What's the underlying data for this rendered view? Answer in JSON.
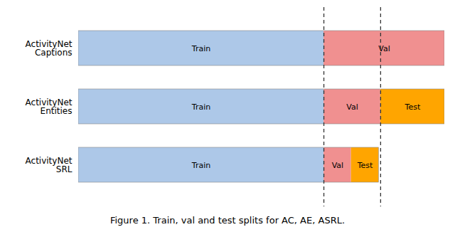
{
  "chart_data": {
    "type": "bar",
    "orientation": "horizontal",
    "stacked": true,
    "categories": [
      "ActivityNet\nCaptions",
      "ActivityNet\nEntities",
      "ActivityNet\nSRL"
    ],
    "series": [
      {
        "name": "Train",
        "color": "#adc8e8",
        "values": [
          0.67,
          0.67,
          0.67
        ]
      },
      {
        "name": "Val",
        "color": "#f09090",
        "values": [
          0.33,
          0.155,
          0.075
        ]
      },
      {
        "name": "Test",
        "color": "#ffa500",
        "values": [
          0.0,
          0.175,
          0.075
        ]
      }
    ],
    "xlim": [
      0,
      1.0
    ],
    "tick_labels": "y",
    "vlines": [
      0.67,
      0.825
    ],
    "caption": "Figure 1. Train, val and test splits for AC, AE, ASRL."
  }
}
